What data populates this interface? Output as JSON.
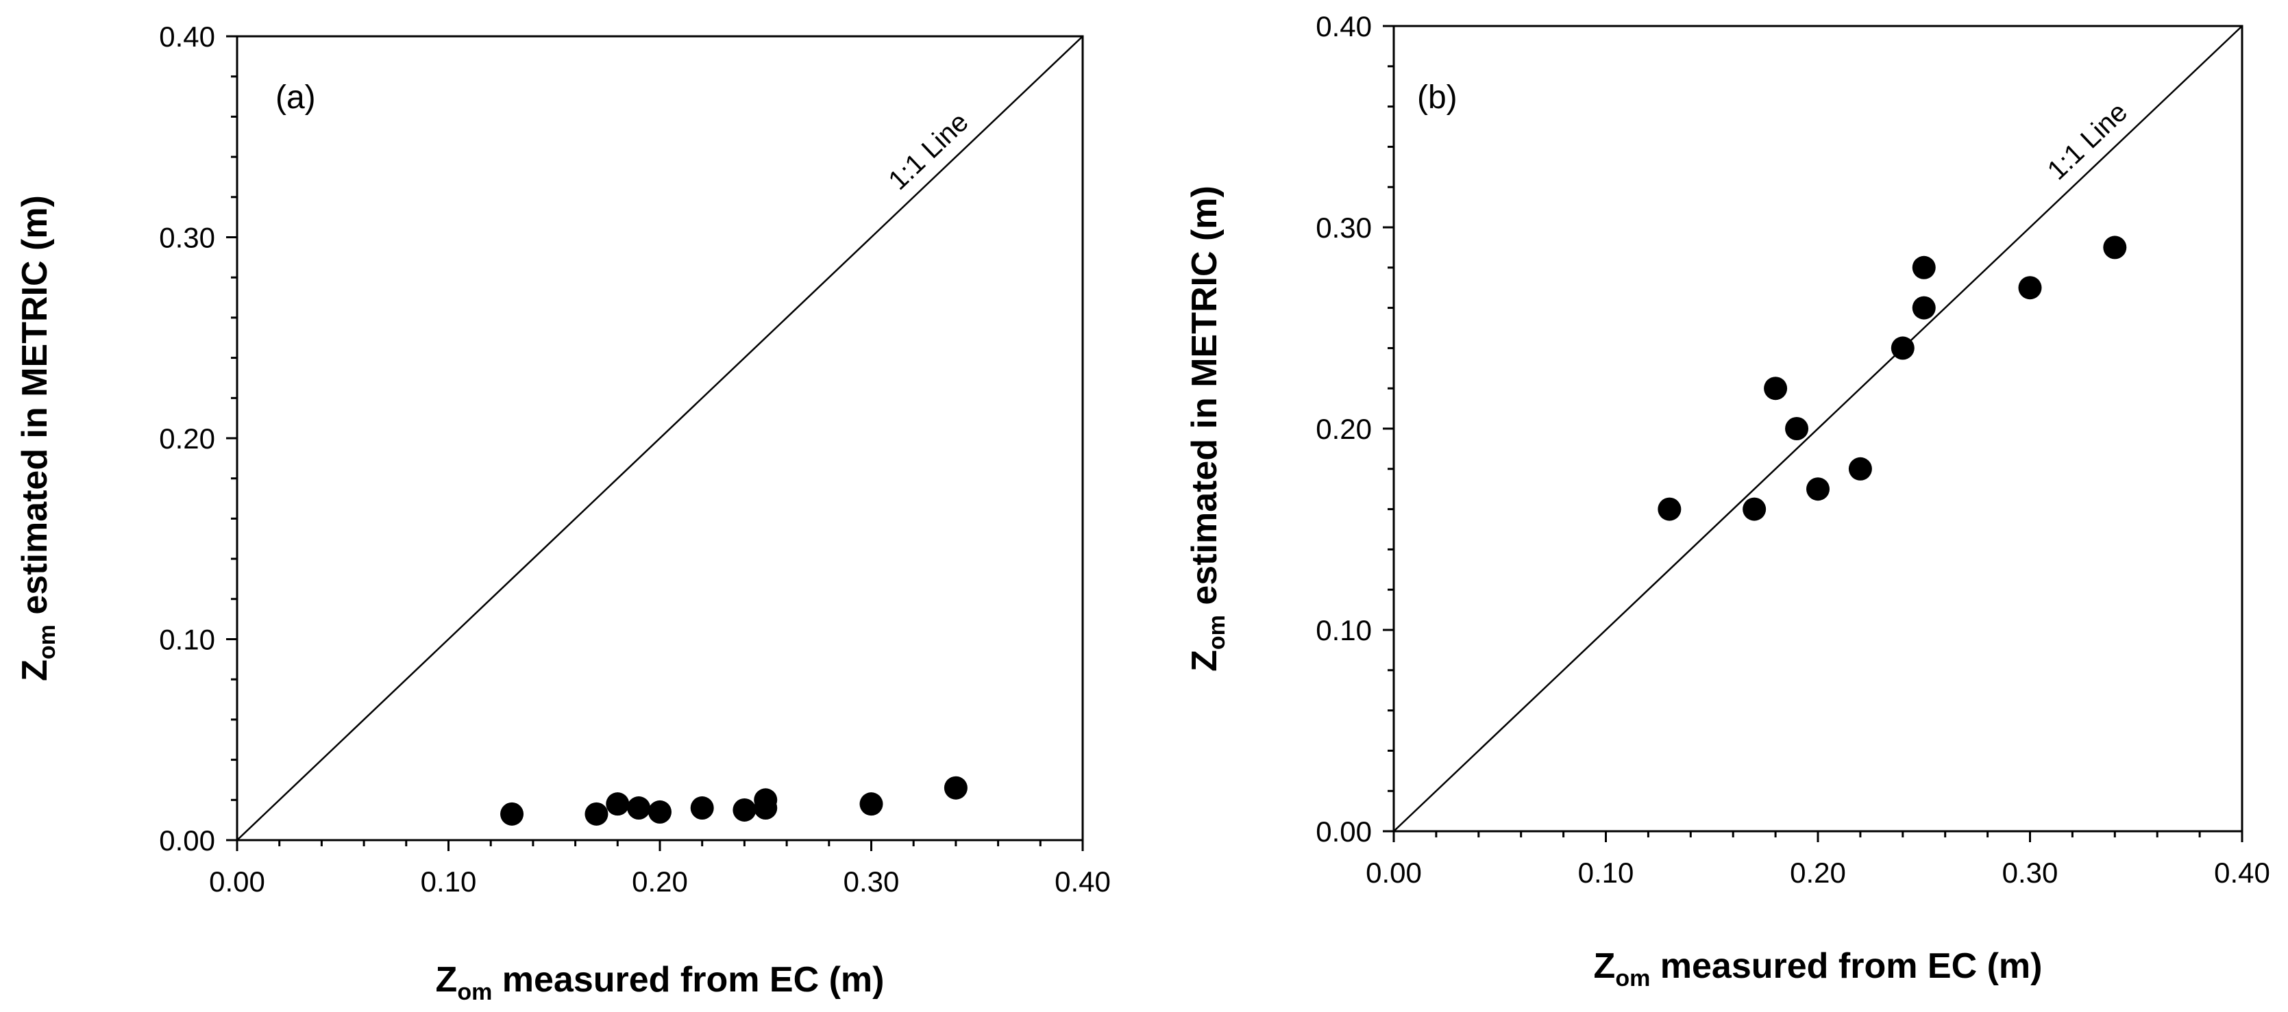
{
  "chart_data": [
    {
      "type": "scatter",
      "panel_label": "(a)",
      "reference_line": {
        "label": "1:1 Line",
        "slope": 1,
        "intercept": 0
      },
      "xlabel": {
        "main": "Z",
        "sub": "om",
        "rest": " measured from EC (m)"
      },
      "ylabel": {
        "main": "Z",
        "sub": "om",
        "rest": " estimated in METRIC (m)"
      },
      "xlim": [
        0,
        0.4
      ],
      "ylim": [
        0,
        0.4
      ],
      "ticks": [
        "0.00",
        "0.10",
        "0.20",
        "0.30",
        "0.40"
      ],
      "x": [
        0.13,
        0.17,
        0.18,
        0.19,
        0.2,
        0.22,
        0.24,
        0.25,
        0.25,
        0.3,
        0.34
      ],
      "y": [
        0.013,
        0.013,
        0.018,
        0.016,
        0.014,
        0.016,
        0.015,
        0.02,
        0.016,
        0.018,
        0.026
      ]
    },
    {
      "type": "scatter",
      "panel_label": "(b)",
      "reference_line": {
        "label": "1:1 Line",
        "slope": 1,
        "intercept": 0
      },
      "xlabel": {
        "main": "Z",
        "sub": "om",
        "rest": " measured from EC (m)"
      },
      "ylabel": {
        "main": "Z",
        "sub": "om",
        "rest": " estimated in METRIC (m)"
      },
      "xlim": [
        0,
        0.4
      ],
      "ylim": [
        0,
        0.4
      ],
      "ticks": [
        "0.00",
        "0.10",
        "0.20",
        "0.30",
        "0.40"
      ],
      "x": [
        0.13,
        0.17,
        0.18,
        0.19,
        0.2,
        0.22,
        0.24,
        0.25,
        0.25,
        0.3,
        0.34
      ],
      "y": [
        0.16,
        0.16,
        0.22,
        0.2,
        0.17,
        0.18,
        0.24,
        0.28,
        0.26,
        0.27,
        0.29
      ]
    }
  ]
}
